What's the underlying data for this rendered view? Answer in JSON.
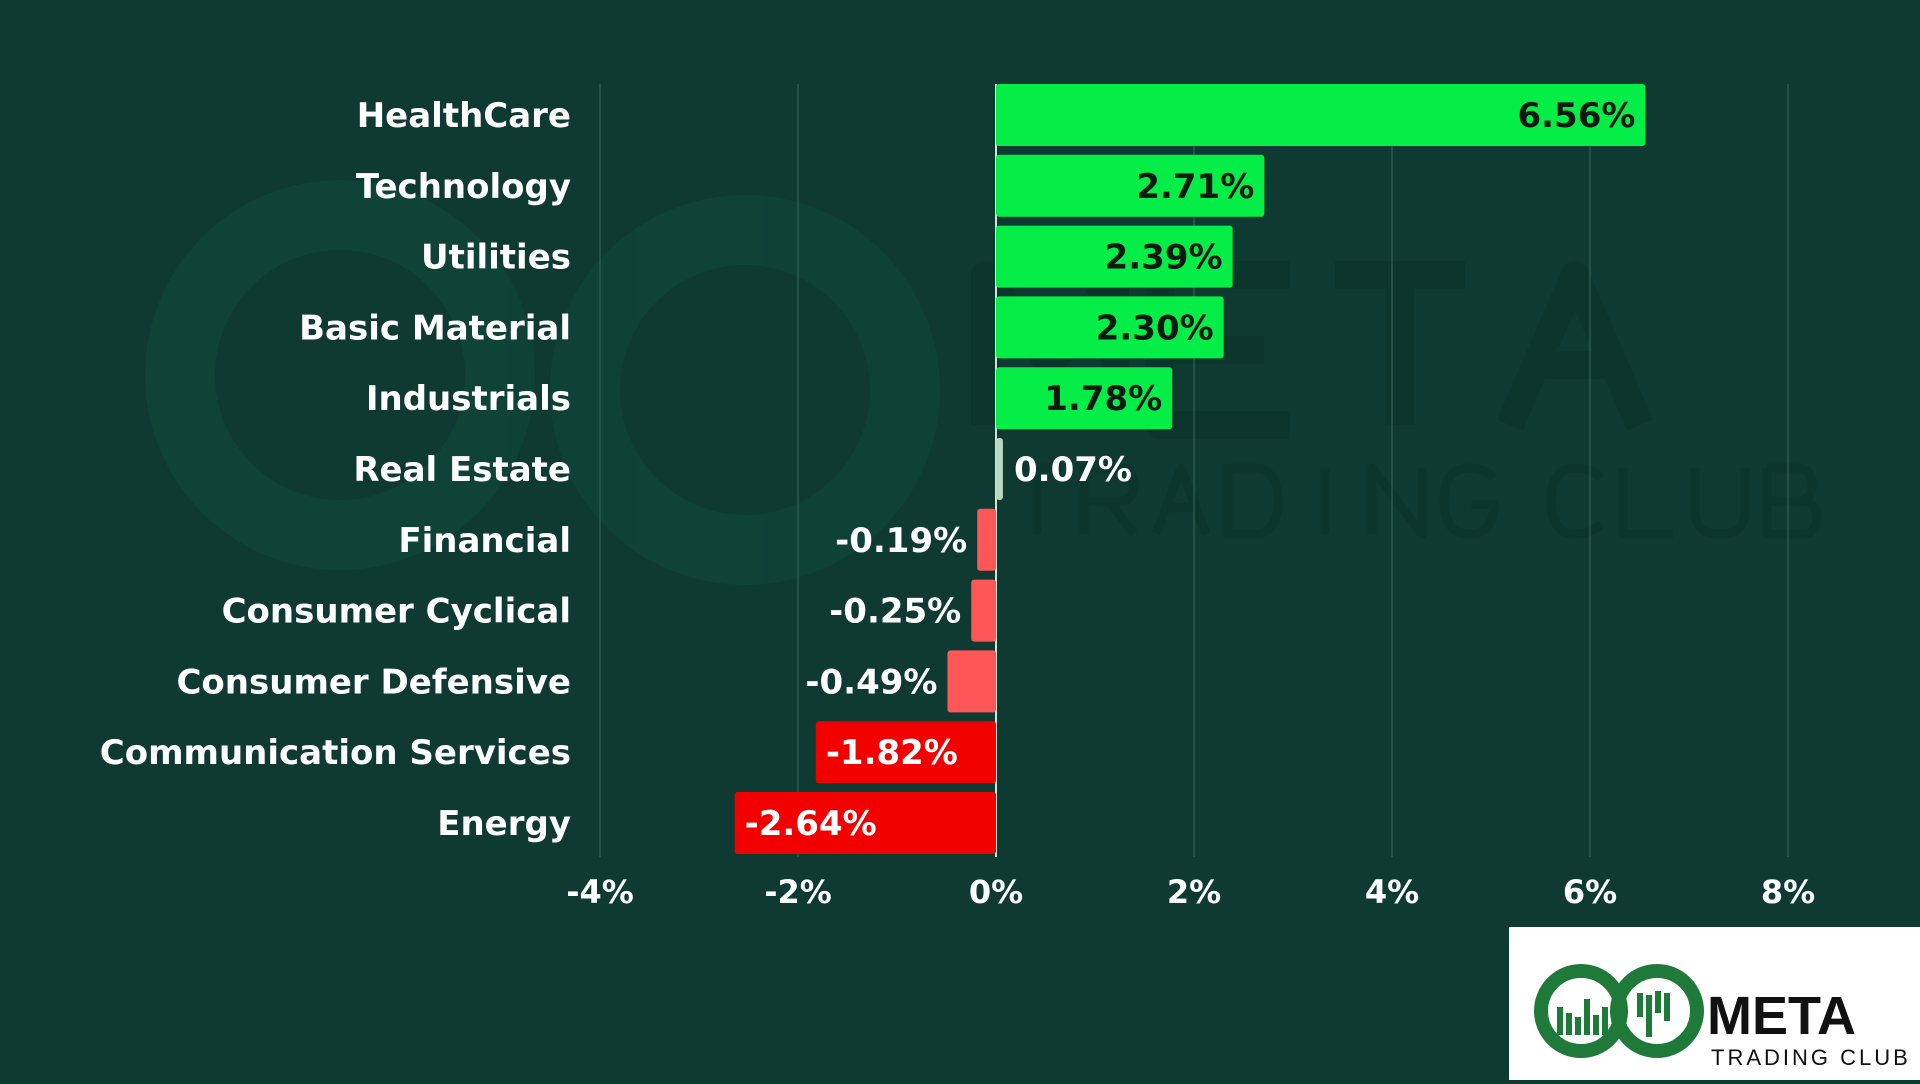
{
  "chart_data": {
    "type": "bar",
    "orientation": "horizontal",
    "categories": [
      "HealthCare",
      "Technology",
      "Utilities",
      "Basic Material",
      "Industrials",
      "Real Estate",
      "Financial",
      "Consumer Cyclical",
      "Consumer Defensive",
      "Communication Services",
      "Energy"
    ],
    "values": [
      6.56,
      2.71,
      2.39,
      2.3,
      1.78,
      0.07,
      -0.19,
      -0.25,
      -0.49,
      -1.82,
      -2.64
    ],
    "value_labels": [
      "6.56%",
      "2.71%",
      "2.39%",
      "2.30%",
      "1.78%",
      "0.07%",
      "-0.19%",
      "-0.25%",
      "-0.49%",
      "-1.82%",
      "-2.64%"
    ],
    "xlim": [
      -4,
      8
    ],
    "xticks": [
      -4,
      -2,
      0,
      2,
      4,
      6,
      8
    ],
    "xtick_labels": [
      "-4%",
      "-2%",
      "0%",
      "2%",
      "4%",
      "6%",
      "8%"
    ],
    "grid": "vertical",
    "colors": {
      "background": "#0e3a31",
      "positive_strong": "#05ee47",
      "positive_near_zero": "#b9d6bf",
      "negative_small": "#ff5757",
      "negative_strong": "#f20000",
      "grid": "#2c5a4d"
    }
  },
  "branding": {
    "logo_name": "META",
    "logo_subtitle": "TRADING CLUB",
    "watermark_name": "META",
    "watermark_subtitle": "TRADING CLUB"
  }
}
